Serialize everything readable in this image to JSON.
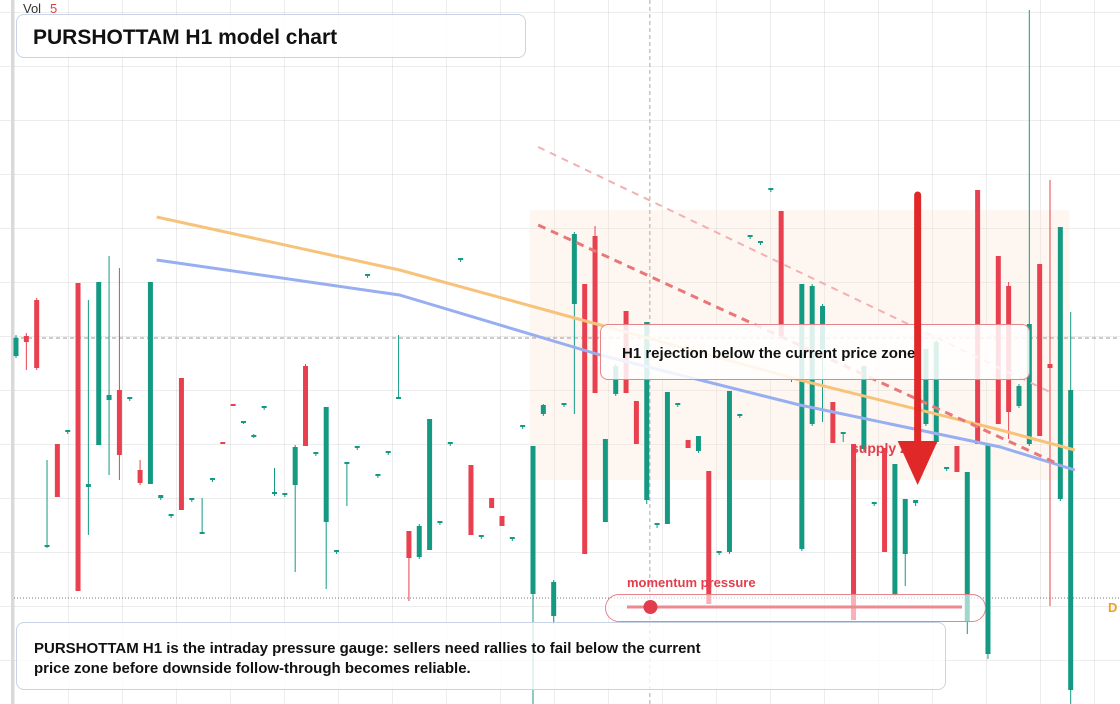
{
  "chart_data": {
    "type": "candlestick",
    "title": "PURSHOTTAM H1 model chart",
    "vol_label": "Vol",
    "vol_value": 5,
    "ylim": [
      0,
      704
    ],
    "up_color": "#149a83",
    "down_color": "#e8404f",
    "open": [
      348,
      368,
      404,
      157,
      260,
      272,
      421,
      217,
      259,
      304,
      314,
      305,
      234,
      220,
      206,
      188,
      326,
      204,
      170,
      224,
      262,
      300,
      281,
      268,
      296,
      210,
      209,
      219,
      338,
      250,
      182,
      152,
      240,
      256,
      428,
      228,
      251,
      307,
      173,
      147,
      154,
      181,
      260,
      444,
      239,
      167,
      206,
      188,
      165,
      277,
      110,
      290,
      88,
      299,
      400,
      420,
      468,
      182,
      310,
      393,
      303,
      204,
      179,
      180,
      299,
      264,
      253,
      233,
      151,
      152,
      288,
      467,
      461,
      514,
      493,
      324,
      155,
      280,
      355,
      302,
      270,
      260,
      255,
      200,
      256,
      110,
      150,
      201,
      280,
      262,
      235,
      258,
      82,
      514,
      50,
      448,
      418,
      298,
      260,
      440,
      340,
      205,
      14
    ],
    "high": [
      369,
      371,
      406,
      244,
      260,
      274,
      421,
      404,
      422,
      448,
      436,
      307,
      244,
      422,
      209,
      190,
      326,
      206,
      206,
      226,
      262,
      300,
      283,
      270,
      298,
      236,
      211,
      259,
      340,
      252,
      297,
      154,
      242,
      258,
      430,
      230,
      253,
      369,
      173,
      180,
      285,
      183,
      262,
      446,
      239,
      169,
      206,
      188,
      167,
      279,
      258,
      300,
      124,
      301,
      472,
      420,
      478,
      265,
      340,
      393,
      303,
      382,
      181,
      312,
      301,
      264,
      268,
      233,
      153,
      313,
      290,
      469,
      463,
      516,
      493,
      326,
      420,
      420,
      400,
      302,
      272,
      260,
      338,
      202,
      256,
      240,
      205,
      204,
      355,
      364,
      237,
      258,
      232,
      514,
      260,
      448,
      422,
      320,
      694,
      440,
      524,
      477,
      392
    ],
    "low": [
      346,
      334,
      334,
      156,
      207,
      270,
      113,
      169,
      259,
      229,
      224,
      303,
      219,
      220,
      204,
      186,
      194,
      202,
      171,
      222,
      260,
      298,
      280,
      266,
      294,
      208,
      207,
      132,
      258,
      248,
      115,
      150,
      198,
      254,
      426,
      226,
      249,
      305,
      103,
      145,
      154,
      179,
      258,
      442,
      169,
      165,
      196,
      178,
      163,
      275,
      0,
      288,
      80,
      297,
      290,
      150,
      311,
      182,
      308,
      311,
      260,
      200,
      176,
      180,
      297,
      256,
      251,
      100,
      149,
      150,
      286,
      465,
      459,
      512,
      368,
      322,
      153,
      278,
      282,
      261,
      262,
      84,
      253,
      198,
      152,
      108,
      118,
      198,
      278,
      260,
      233,
      232,
      70,
      260,
      45,
      280,
      265,
      296,
      258,
      268,
      98,
      203,
      0
    ],
    "close": [
      366,
      362,
      336,
      159,
      207,
      274,
      113,
      220,
      422,
      309,
      249,
      307,
      221,
      422,
      209,
      190,
      194,
      206,
      172,
      226,
      260,
      298,
      283,
      269,
      298,
      212,
      211,
      257,
      258,
      252,
      297,
      154,
      242,
      258,
      430,
      230,
      253,
      307,
      146,
      178,
      285,
      183,
      262,
      446,
      169,
      169,
      196,
      178,
      167,
      279,
      258,
      299,
      122,
      301,
      470,
      150,
      311,
      265,
      338,
      311,
      260,
      382,
      181,
      312,
      301,
      256,
      268,
      100,
      153,
      313,
      290,
      469,
      463,
      516,
      368,
      326,
      420,
      418,
      398,
      261,
      272,
      84,
      338,
      202,
      152,
      240,
      205,
      204,
      355,
      362,
      237,
      232,
      232,
      260,
      260,
      280,
      292,
      318,
      380,
      268,
      336,
      477,
      314
    ],
    "overlays": [
      {
        "color": "#f7c37a",
        "x": [
          13.6,
          37.1,
          56.5,
          75.8,
          95.2,
          102.4
        ],
        "values": [
          487,
          434,
          379,
          324,
          274,
          254
        ]
      },
      {
        "color": "#97aef0",
        "x": [
          13.6,
          37.1,
          56.5,
          75.8,
          95.2,
          102.4
        ],
        "values": [
          444,
          409,
          349,
          299,
          257,
          234
        ]
      }
    ],
    "trendlines": [
      {
        "color": "#e87878",
        "x": [
          50.5,
          101
        ],
        "values": [
          479,
          239
        ],
        "dash": "8 6",
        "width": 3
      },
      {
        "color": "#f2b0b0",
        "x": [
          50.5,
          100
        ],
        "values": [
          557,
          312
        ],
        "dash": "7 6",
        "width": 2
      }
    ],
    "price_line": 366,
    "dotted_line": 106,
    "crosshair_x": 61.3,
    "zone": {
      "label": "supply zone",
      "x": [
        49.7,
        101.9
      ],
      "values": [
        494,
        224
      ]
    },
    "arrow": {
      "x": 87.2,
      "values": [
        509,
        219
      ]
    },
    "annotation": "H1 rejection below the current price zone",
    "momentum": {
      "label": "momentum pressure",
      "value": 7,
      "range": [
        0,
        100
      ]
    },
    "edge_label": "D",
    "note": [
      "PURSHOTTAM H1 is the intraday pressure gauge: sellers need rallies to fail below the current",
      "price zone before downside follow-through becomes reliable."
    ]
  }
}
